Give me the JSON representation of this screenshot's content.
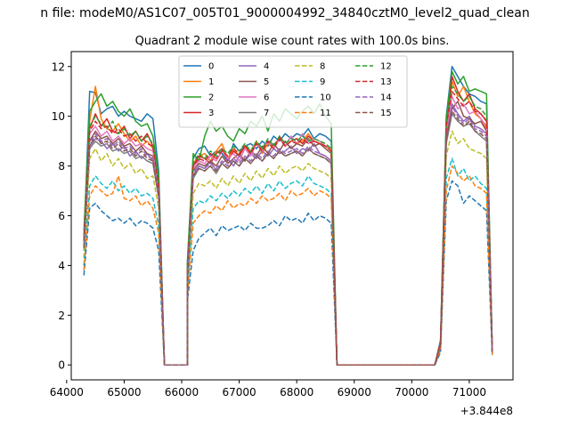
{
  "suptitle": "n file: modeM0/AS1C07_005T01_9000004992_34840cztM0_level2_quad_clean",
  "chart_data": {
    "type": "line",
    "title": "Quadrant 2 module wise count rates with 100.0s bins.",
    "xlabel": "",
    "ylabel": "",
    "x_offset_label": "+3.844e8",
    "xlim": [
      64080,
      71760
    ],
    "ylim": [
      -0.6,
      12.6
    ],
    "xticks": [
      64000,
      65000,
      66000,
      67000,
      68000,
      69000,
      70000,
      71000
    ],
    "yticks": [
      0,
      2,
      4,
      6,
      8,
      10,
      12
    ],
    "grid": false,
    "legend": {
      "placement": "top-center",
      "ncol": 4
    },
    "segments": [
      {
        "start": 64300,
        "count": 14
      },
      {
        "start": 65700,
        "count": 5
      },
      {
        "start": 66100,
        "count": 26
      },
      {
        "start": 68700,
        "count": 18
      },
      {
        "start": 70500,
        "count": 10
      }
    ],
    "series": [
      {
        "name": "0",
        "color": "#1f77b4",
        "dash": false,
        "seg1": [
          5.0,
          11.0,
          10.95,
          10.1,
          10.3,
          10.4,
          10.0,
          10.2,
          10.0,
          9.9,
          9.8,
          10.1,
          9.9,
          7.8
        ],
        "seg3": [
          4.1,
          8.3,
          8.7,
          8.8,
          8.4,
          8.6,
          8.5,
          8.2,
          8.9,
          8.6,
          8.8,
          8.9,
          8.7,
          9.0,
          8.8,
          9.2,
          9.0,
          9.3,
          9.1,
          9.3,
          9.2,
          9.5,
          9.1,
          9.3,
          9.2,
          9.0
        ],
        "seg5": [
          1.0,
          10.0,
          12.0,
          11.6,
          11.2,
          10.9,
          10.8,
          10.6,
          10.5,
          0.6
        ]
      },
      {
        "name": "1",
        "color": "#ff7f0e",
        "dash": false,
        "seg1": [
          5.2,
          9.8,
          11.2,
          9.9,
          9.5,
          9.4,
          9.7,
          9.3,
          9.0,
          9.2,
          8.8,
          9.0,
          8.7,
          7.2
        ],
        "seg3": [
          3.9,
          8.1,
          8.4,
          8.5,
          8.2,
          8.6,
          8.9,
          8.3,
          8.7,
          8.4,
          8.8,
          8.6,
          9.0,
          8.5,
          8.9,
          8.7,
          9.1,
          8.8,
          9.2,
          8.9,
          9.0,
          9.3,
          9.0,
          8.9,
          8.8,
          8.7
        ],
        "seg5": [
          0.9,
          9.6,
          11.4,
          10.8,
          11.2,
          10.6,
          10.1,
          9.9,
          9.5,
          0.5
        ]
      },
      {
        "name": "2",
        "color": "#2ca02c",
        "dash": false,
        "seg1": [
          5.4,
          10.2,
          10.6,
          10.9,
          10.4,
          10.6,
          10.2,
          10.0,
          10.3,
          9.8,
          9.6,
          9.7,
          9.2,
          7.6
        ],
        "seg3": [
          4.2,
          8.5,
          8.2,
          9.2,
          9.8,
          9.4,
          9.6,
          9.2,
          9.0,
          9.5,
          9.3,
          9.8,
          9.6,
          10.0,
          9.4,
          10.1,
          9.8,
          10.3,
          10.1,
          9.9,
          10.2,
          10.4,
          10.1,
          10.5,
          10.0,
          9.7
        ],
        "seg5": [
          0.9,
          9.9,
          11.8,
          11.3,
          11.6,
          11.0,
          11.1,
          11.0,
          10.9,
          0.6
        ]
      },
      {
        "name": "3",
        "color": "#d62728",
        "dash": false,
        "seg1": [
          5.0,
          9.5,
          10.1,
          9.6,
          9.9,
          9.4,
          9.3,
          9.6,
          9.1,
          9.4,
          9.0,
          9.3,
          8.8,
          7.2
        ],
        "seg3": [
          3.8,
          8.0,
          8.4,
          8.3,
          8.1,
          8.5,
          8.7,
          8.2,
          8.6,
          8.4,
          8.8,
          8.5,
          8.9,
          8.6,
          9.0,
          8.7,
          9.2,
          8.8,
          9.0,
          9.1,
          8.9,
          9.2,
          9.0,
          8.9,
          8.8,
          8.6
        ],
        "seg5": [
          0.8,
          9.4,
          11.6,
          11.0,
          10.6,
          10.9,
          10.3,
          10.1,
          9.8,
          0.5
        ]
      },
      {
        "name": "4",
        "color": "#9467bd",
        "dash": false,
        "seg1": [
          4.8,
          8.8,
          9.1,
          9.0,
          8.7,
          8.9,
          8.6,
          8.8,
          8.4,
          8.6,
          8.3,
          8.5,
          8.2,
          6.8
        ],
        "seg3": [
          3.6,
          7.6,
          8.0,
          7.9,
          8.2,
          7.8,
          8.1,
          8.3,
          8.0,
          8.4,
          8.2,
          8.5,
          8.3,
          8.6,
          8.4,
          8.7,
          8.5,
          8.6,
          8.8,
          8.5,
          8.7,
          8.6,
          8.9,
          8.5,
          8.4,
          8.2
        ],
        "seg5": [
          0.8,
          9.0,
          10.5,
          10.1,
          9.8,
          10.0,
          9.6,
          9.5,
          9.3,
          0.5
        ]
      },
      {
        "name": "5",
        "color": "#8c564b",
        "dash": false,
        "seg1": [
          4.7,
          9.0,
          9.4,
          9.1,
          9.2,
          8.9,
          9.1,
          8.8,
          8.9,
          8.6,
          8.8,
          8.5,
          8.4,
          7.0
        ],
        "seg3": [
          3.7,
          7.8,
          8.1,
          8.0,
          8.2,
          8.0,
          8.4,
          8.1,
          8.3,
          8.5,
          8.2,
          8.6,
          8.4,
          8.8,
          8.5,
          8.9,
          8.6,
          9.0,
          8.7,
          8.9,
          8.8,
          9.1,
          8.8,
          8.9,
          8.7,
          8.5
        ],
        "seg5": [
          0.8,
          9.2,
          10.3,
          10.6,
          10.0,
          9.9,
          9.7,
          9.8,
          9.4,
          0.5
        ]
      },
      {
        "name": "6",
        "color": "#e377c2",
        "dash": false,
        "seg1": [
          4.9,
          9.3,
          9.6,
          9.2,
          9.4,
          9.0,
          9.2,
          8.9,
          9.1,
          8.8,
          8.9,
          8.7,
          8.6,
          7.1
        ],
        "seg3": [
          3.8,
          7.9,
          8.2,
          8.1,
          8.4,
          8.2,
          8.6,
          8.3,
          8.5,
          8.2,
          8.7,
          8.4,
          8.9,
          8.6,
          9.0,
          8.7,
          9.1,
          8.8,
          9.2,
          8.9,
          9.3,
          8.9,
          9.1,
          9.0,
          8.8,
          8.6
        ],
        "seg5": [
          0.9,
          9.4,
          10.8,
          10.3,
          10.5,
          10.1,
          10.2,
          9.9,
          9.6,
          0.5
        ]
      },
      {
        "name": "7",
        "color": "#7f7f7f",
        "dash": false,
        "seg1": [
          4.6,
          8.7,
          9.0,
          8.8,
          8.9,
          8.6,
          8.7,
          8.5,
          8.6,
          8.3,
          8.4,
          8.2,
          8.1,
          6.7
        ],
        "seg3": [
          3.6,
          7.5,
          7.9,
          7.8,
          8.0,
          7.7,
          8.1,
          7.9,
          8.2,
          8.0,
          8.3,
          8.1,
          8.4,
          8.2,
          8.5,
          8.3,
          8.6,
          8.4,
          8.5,
          8.6,
          8.4,
          8.7,
          8.5,
          8.4,
          8.3,
          8.1
        ],
        "seg5": [
          0.8,
          8.9,
          10.1,
          9.8,
          9.6,
          9.7,
          9.4,
          9.2,
          9.0,
          0.5
        ]
      },
      {
        "name": "8",
        "color": "#bcbd22",
        "dash": true,
        "seg1": [
          4.3,
          8.3,
          8.7,
          8.2,
          8.5,
          8.0,
          8.3,
          7.9,
          8.1,
          7.7,
          7.9,
          7.5,
          7.6,
          6.3
        ],
        "seg3": [
          3.3,
          6.9,
          7.3,
          7.2,
          7.4,
          7.1,
          7.5,
          7.2,
          7.6,
          7.3,
          7.7,
          7.4,
          7.8,
          7.5,
          7.9,
          7.6,
          8.0,
          7.7,
          7.9,
          8.0,
          7.8,
          8.1,
          7.9,
          7.8,
          7.7,
          7.5
        ],
        "seg5": [
          0.7,
          8.4,
          9.4,
          8.9,
          9.1,
          8.7,
          8.6,
          8.5,
          8.3,
          0.5
        ]
      },
      {
        "name": "9",
        "color": "#17becf",
        "dash": true,
        "seg1": [
          4.0,
          7.2,
          7.6,
          7.3,
          7.1,
          7.4,
          7.0,
          7.2,
          6.9,
          7.1,
          6.8,
          6.9,
          6.7,
          5.6
        ],
        "seg3": [
          3.0,
          6.3,
          6.6,
          6.5,
          6.8,
          6.6,
          6.9,
          6.7,
          7.0,
          6.8,
          7.1,
          6.9,
          7.2,
          6.9,
          7.3,
          7.0,
          7.4,
          7.1,
          7.3,
          7.4,
          7.2,
          7.6,
          7.3,
          7.2,
          7.1,
          6.9
        ],
        "seg5": [
          0.6,
          7.5,
          8.3,
          7.6,
          7.9,
          7.4,
          7.6,
          7.3,
          7.1,
          0.4
        ]
      },
      {
        "name": "10",
        "color": "#1f77b4",
        "dash": true,
        "seg1": [
          3.6,
          6.3,
          6.5,
          6.2,
          6.0,
          5.8,
          5.9,
          5.7,
          5.9,
          5.6,
          5.8,
          5.7,
          5.5,
          4.6
        ],
        "seg3": [
          2.6,
          4.6,
          5.1,
          5.3,
          5.5,
          5.2,
          5.6,
          5.4,
          5.5,
          5.6,
          5.4,
          5.7,
          5.5,
          5.5,
          5.6,
          5.8,
          5.6,
          6.0,
          5.8,
          5.9,
          5.7,
          6.1,
          5.8,
          6.0,
          5.9,
          5.7
        ],
        "seg5": [
          0.5,
          6.6,
          7.4,
          7.2,
          6.5,
          6.8,
          6.6,
          6.4,
          6.2,
          0.4
        ]
      },
      {
        "name": "11",
        "color": "#ff7f0e",
        "dash": true,
        "seg1": [
          3.8,
          6.8,
          7.2,
          7.0,
          6.8,
          6.9,
          7.6,
          6.7,
          6.6,
          6.8,
          6.4,
          6.6,
          6.3,
          5.3
        ],
        "seg3": [
          2.8,
          5.7,
          6.0,
          6.2,
          6.1,
          6.4,
          6.2,
          6.6,
          6.3,
          6.5,
          6.4,
          6.7,
          6.5,
          6.8,
          6.6,
          6.7,
          6.9,
          6.6,
          7.0,
          6.8,
          6.9,
          7.1,
          6.8,
          7.0,
          6.9,
          6.7
        ],
        "seg5": [
          0.6,
          7.0,
          8.0,
          7.7,
          7.4,
          7.6,
          7.2,
          7.1,
          6.9,
          0.4
        ]
      },
      {
        "name": "12",
        "color": "#2ca02c",
        "dash": true,
        "seg1": [
          5.1,
          9.6,
          10.0,
          9.7,
          9.5,
          9.8,
          9.3,
          9.5,
          9.2,
          9.4,
          9.0,
          9.2,
          8.9,
          7.3
        ],
        "seg3": [
          3.9,
          8.1,
          8.5,
          8.3,
          8.6,
          8.4,
          8.7,
          8.5,
          8.8,
          8.6,
          8.9,
          8.6,
          9.0,
          8.7,
          9.1,
          8.8,
          9.2,
          8.9,
          9.1,
          9.0,
          9.2,
          9.0,
          9.1,
          9.0,
          8.9,
          8.7
        ],
        "seg5": [
          0.9,
          9.8,
          11.2,
          10.9,
          10.6,
          10.8,
          10.4,
          10.3,
          10.0,
          0.5
        ]
      },
      {
        "name": "13",
        "color": "#d62728",
        "dash": true,
        "seg1": [
          5.0,
          9.4,
          9.8,
          9.5,
          9.6,
          9.3,
          9.5,
          9.2,
          9.3,
          9.0,
          9.2,
          8.9,
          8.8,
          7.2
        ],
        "seg3": [
          3.8,
          8.0,
          8.3,
          8.2,
          8.5,
          8.3,
          8.6,
          8.4,
          8.7,
          8.5,
          8.8,
          8.5,
          8.9,
          8.6,
          9.0,
          8.7,
          9.1,
          8.8,
          9.0,
          8.9,
          9.1,
          8.9,
          9.0,
          8.9,
          8.8,
          8.6
        ],
        "seg5": [
          0.9,
          9.6,
          11.0,
          10.7,
          10.4,
          10.6,
          10.2,
          10.1,
          9.8,
          0.5
        ]
      },
      {
        "name": "14",
        "color": "#9467bd",
        "dash": true,
        "seg1": [
          4.8,
          8.9,
          9.3,
          9.0,
          9.1,
          8.8,
          9.0,
          8.7,
          8.8,
          8.5,
          8.7,
          8.4,
          8.3,
          6.9
        ],
        "seg3": [
          3.6,
          7.7,
          8.0,
          7.9,
          8.1,
          7.9,
          8.2,
          8.0,
          8.3,
          8.1,
          8.4,
          8.2,
          8.5,
          8.3,
          8.6,
          8.4,
          8.7,
          8.5,
          8.6,
          8.7,
          8.5,
          8.8,
          8.6,
          8.5,
          8.4,
          8.2
        ],
        "seg5": [
          0.8,
          9.2,
          10.4,
          10.0,
          9.7,
          9.9,
          9.5,
          9.4,
          9.2,
          0.5
        ]
      },
      {
        "name": "15",
        "color": "#8c564b",
        "dash": true,
        "seg1": [
          4.7,
          8.8,
          9.2,
          8.9,
          9.0,
          8.7,
          8.9,
          8.6,
          8.7,
          8.4,
          8.6,
          8.3,
          8.2,
          6.8
        ],
        "seg3": [
          3.5,
          7.6,
          7.9,
          7.8,
          8.0,
          7.8,
          8.1,
          7.9,
          8.2,
          8.0,
          8.3,
          8.1,
          8.4,
          8.2,
          8.5,
          8.3,
          8.6,
          8.4,
          8.5,
          8.6,
          8.4,
          8.7,
          8.5,
          8.4,
          8.3,
          8.1
        ],
        "seg5": [
          0.8,
          9.1,
          10.2,
          9.9,
          9.6,
          9.8,
          9.4,
          9.3,
          9.1,
          0.5
        ]
      }
    ]
  }
}
